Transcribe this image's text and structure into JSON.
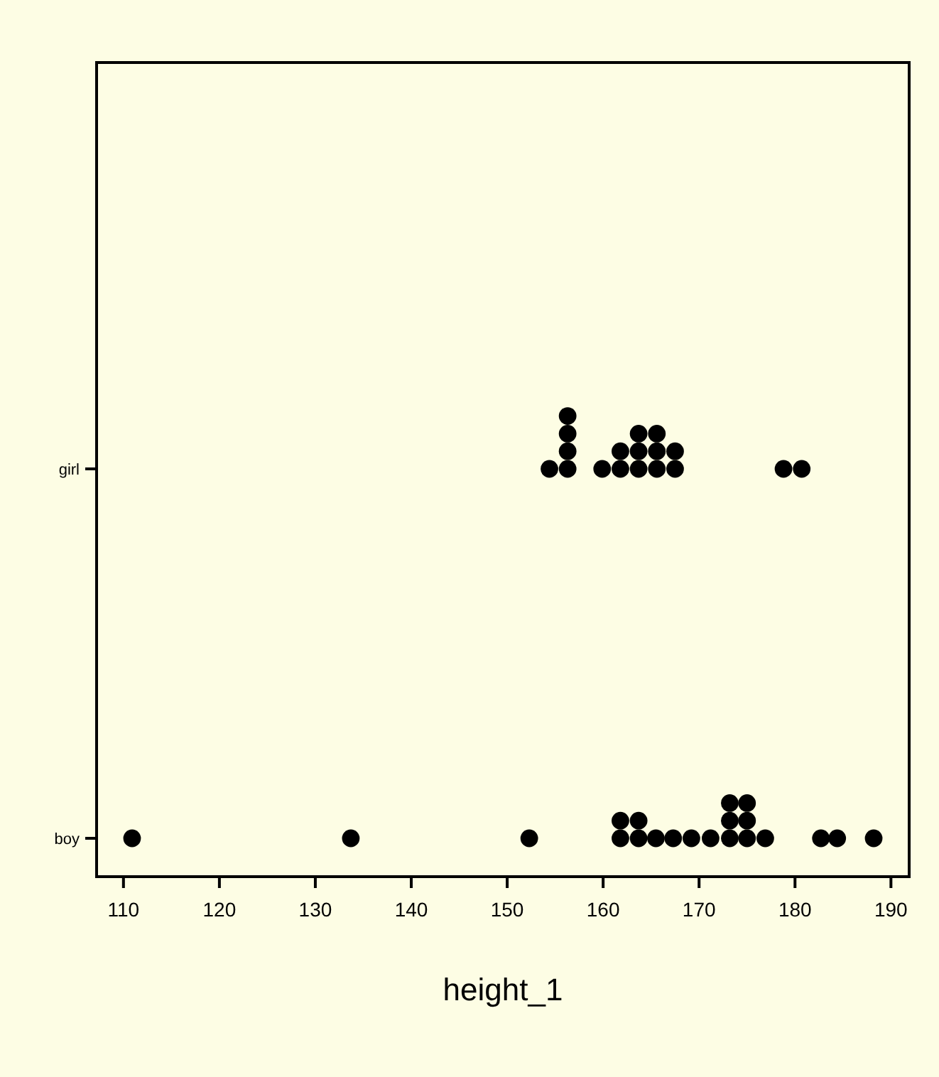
{
  "chart_data": {
    "type": "scatter",
    "orientation": "horizontal",
    "xlabel": "height_1",
    "categories": [
      "girl",
      "boy"
    ],
    "xlim": [
      107.2,
      191.9
    ],
    "xticks": [
      110,
      120,
      130,
      140,
      150,
      160,
      170,
      180,
      190
    ],
    "marker": "circle",
    "series": [
      {
        "color": "#000000",
        "values": [
          154.4,
          156.3,
          156.3,
          156.3,
          156.3,
          159.9,
          161.8,
          161.8,
          163.7,
          163.7,
          163.7,
          165.6,
          165.6,
          165.6,
          167.5,
          167.5,
          178.8,
          180.7
        ],
        "x": [
          "girl",
          "girl",
          "girl",
          "girl",
          "girl",
          "girl",
          "girl",
          "girl",
          "girl",
          "girl",
          "girl",
          "girl",
          "girl",
          "girl",
          "girl",
          "girl",
          "girl",
          "girl"
        ]
      },
      {
        "color": "#000000",
        "values": [
          110.9,
          133.7,
          152.3,
          161.8,
          161.8,
          163.7,
          163.7,
          165.5,
          167.3,
          169.2,
          171.2,
          173.2,
          173.2,
          173.2,
          175.0,
          175.0,
          175.0,
          176.9,
          182.7,
          184.4,
          188.2
        ],
        "x": [
          "boy",
          "boy",
          "boy",
          "boy",
          "boy",
          "boy",
          "boy",
          "boy",
          "boy",
          "boy",
          "boy",
          "boy",
          "boy",
          "boy",
          "boy",
          "boy",
          "boy",
          "boy",
          "boy",
          "boy",
          "boy"
        ]
      }
    ]
  }
}
